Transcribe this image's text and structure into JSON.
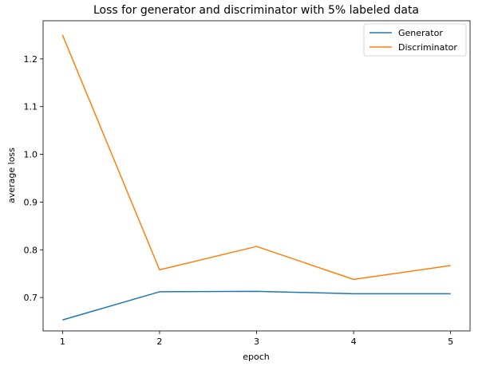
{
  "chart_data": {
    "type": "line",
    "title": "Loss for generator and discriminator with 5% labeled data",
    "xlabel": "epoch",
    "ylabel": "average loss",
    "x": [
      1,
      2,
      3,
      4,
      5
    ],
    "xticks": [
      "1",
      "2",
      "3",
      "4",
      "5"
    ],
    "yticks": [
      "0.7",
      "0.8",
      "0.9",
      "1.0",
      "1.1",
      "1.2"
    ],
    "xlim": [
      0.8,
      5.2
    ],
    "ylim": [
      0.63,
      1.28
    ],
    "grid": false,
    "legend_position": "top-right",
    "series": [
      {
        "name": "Generator",
        "color": "#1f77b4",
        "values": [
          0.653,
          0.712,
          0.713,
          0.708,
          0.708
        ]
      },
      {
        "name": "Discriminator",
        "color": "#ff7f0e",
        "values": [
          1.25,
          0.758,
          0.807,
          0.738,
          0.767
        ]
      }
    ]
  }
}
